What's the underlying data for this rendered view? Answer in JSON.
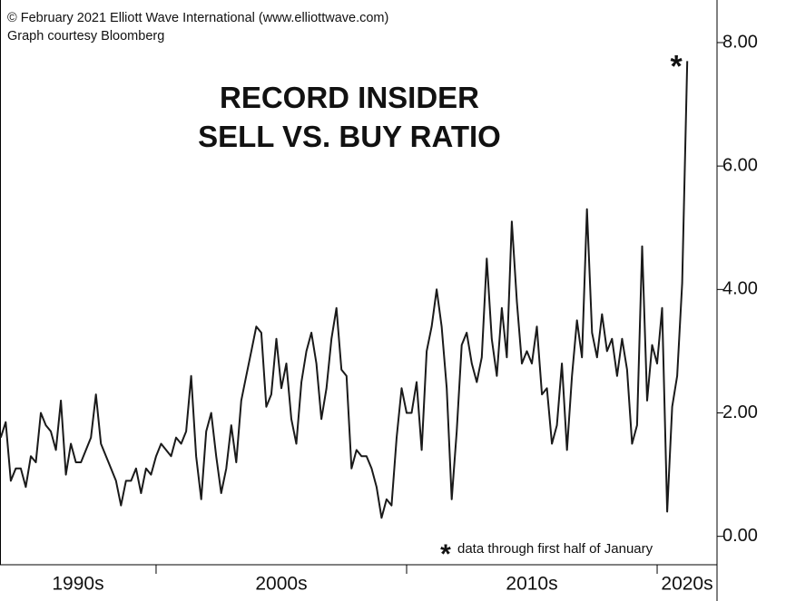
{
  "chart_data": {
    "type": "line",
    "source_lines": [
      "© February 2021 Elliott Wave International (www.elliottwave.com)",
      "Graph courtesy Bloomberg"
    ],
    "title_lines": [
      "RECORD INSIDER",
      "SELL VS. BUY RATIO"
    ],
    "footnote_marker": "*",
    "footnote": "data through first half of January",
    "color": "#1a1a1a",
    "marker_color": "#1515e0",
    "x": [
      1993.8,
      1994.0,
      1994.2,
      1994.4,
      1994.6,
      1994.8,
      1995.0,
      1995.2,
      1995.4,
      1995.6,
      1995.8,
      1996.0,
      1996.2,
      1996.4,
      1996.6,
      1996.8,
      1997.0,
      1997.2,
      1997.4,
      1997.6,
      1997.8,
      1998.0,
      1998.2,
      1998.4,
      1998.6,
      1998.8,
      1999.0,
      1999.2,
      1999.4,
      1999.6,
      1999.8,
      2000.0,
      2000.2,
      2000.4,
      2000.6,
      2000.8,
      2001.0,
      2001.2,
      2001.4,
      2001.6,
      2001.8,
      2002.0,
      2002.2,
      2002.4,
      2002.6,
      2002.8,
      2003.0,
      2003.2,
      2003.4,
      2003.6,
      2003.8,
      2004.0,
      2004.2,
      2004.4,
      2004.6,
      2004.8,
      2005.0,
      2005.2,
      2005.4,
      2005.6,
      2005.8,
      2006.0,
      2006.2,
      2006.4,
      2006.6,
      2006.8,
      2007.0,
      2007.2,
      2007.4,
      2007.6,
      2007.8,
      2008.0,
      2008.2,
      2008.4,
      2008.6,
      2008.8,
      2009.0,
      2009.2,
      2009.4,
      2009.6,
      2009.8,
      2010.0,
      2010.2,
      2010.4,
      2010.6,
      2010.8,
      2011.0,
      2011.2,
      2011.4,
      2011.6,
      2011.8,
      2012.0,
      2012.2,
      2012.4,
      2012.6,
      2012.8,
      2013.0,
      2013.2,
      2013.4,
      2013.6,
      2013.8,
      2014.0,
      2014.2,
      2014.4,
      2014.6,
      2014.8,
      2015.0,
      2015.2,
      2015.4,
      2015.6,
      2015.8,
      2016.0,
      2016.2,
      2016.4,
      2016.6,
      2016.8,
      2017.0,
      2017.2,
      2017.4,
      2017.6,
      2017.8,
      2018.0,
      2018.2,
      2018.4,
      2018.6,
      2018.8,
      2019.0,
      2019.2,
      2019.4,
      2019.6,
      2019.8,
      2020.0,
      2020.2,
      2020.4,
      2020.6,
      2020.8,
      2021.0,
      2021.2
    ],
    "values": [
      1.6,
      1.85,
      0.9,
      1.1,
      1.1,
      0.8,
      1.3,
      1.2,
      2.0,
      1.8,
      1.7,
      1.4,
      2.2,
      1.0,
      1.5,
      1.2,
      1.2,
      1.4,
      1.6,
      2.3,
      1.5,
      1.3,
      1.1,
      0.9,
      0.5,
      0.9,
      0.9,
      1.1,
      0.7,
      1.1,
      1.0,
      1.3,
      1.5,
      1.4,
      1.3,
      1.6,
      1.5,
      1.7,
      2.6,
      1.3,
      0.6,
      1.7,
      2.0,
      1.3,
      0.7,
      1.1,
      1.8,
      1.2,
      2.2,
      2.6,
      3.0,
      3.4,
      3.3,
      2.1,
      2.3,
      3.2,
      2.4,
      2.8,
      1.9,
      1.5,
      2.5,
      3.0,
      3.3,
      2.8,
      1.9,
      2.4,
      3.2,
      3.7,
      2.7,
      2.6,
      1.1,
      1.4,
      1.3,
      1.3,
      1.1,
      0.8,
      0.3,
      0.6,
      0.5,
      1.6,
      2.4,
      2.0,
      2.0,
      2.5,
      1.4,
      3.0,
      3.4,
      4.0,
      3.4,
      2.4,
      0.6,
      1.7,
      3.1,
      3.3,
      2.8,
      2.5,
      2.9,
      4.5,
      3.2,
      2.6,
      3.7,
      2.9,
      5.1,
      3.8,
      2.8,
      3.0,
      2.8,
      3.4,
      2.3,
      2.4,
      1.5,
      1.8,
      2.8,
      1.4,
      2.6,
      3.5,
      2.9,
      5.3,
      3.3,
      2.9,
      3.6,
      3.0,
      3.2,
      2.6,
      3.2,
      2.7,
      1.5,
      1.8,
      4.7,
      2.2,
      3.1,
      2.8,
      3.7,
      0.4,
      2.1,
      2.6,
      4.1,
      7.7
    ],
    "xlim": [
      1993.77,
      2022.39
    ],
    "xticks": [
      {
        "value": 1990,
        "label": "1990s"
      },
      {
        "value": 2000,
        "label": "2000s"
      },
      {
        "value": 2010,
        "label": "2010s"
      },
      {
        "value": 2020,
        "label": "2020s"
      }
    ],
    "ylim": [
      -0.46,
      8.69
    ],
    "yticks": [
      {
        "value": 0,
        "label": "0.00"
      },
      {
        "value": 2,
        "label": "2.00"
      },
      {
        "value": 4,
        "label": "4.00"
      },
      {
        "value": 6,
        "label": "6.00"
      },
      {
        "value": 8,
        "label": "8.00"
      }
    ],
    "grid": false
  }
}
